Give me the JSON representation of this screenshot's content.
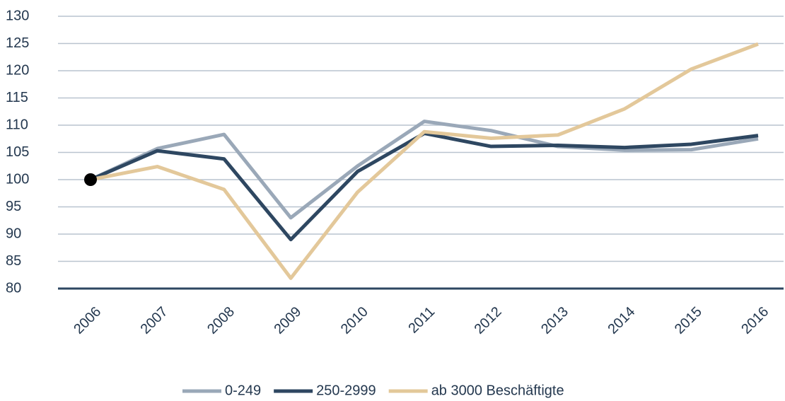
{
  "chart_data": {
    "type": "line",
    "categories": [
      "2006",
      "2007",
      "2008",
      "2009",
      "2010",
      "2011",
      "2012",
      "2013",
      "2014",
      "2015",
      "2016"
    ],
    "series": [
      {
        "name": "0-249",
        "color": "#9aa8b8",
        "values": [
          100,
          105.7,
          108.3,
          93,
          102.5,
          110.7,
          109,
          106.1,
          105.4,
          105.5,
          107.5
        ]
      },
      {
        "name": "250-2999",
        "color": "#2e4761",
        "values": [
          100,
          105.3,
          103.8,
          89,
          101.5,
          108.5,
          106.1,
          106.3,
          105.9,
          106.5,
          108.1
        ]
      },
      {
        "name": "ab 3000 Beschäftigte",
        "color": "#e3c89a",
        "values": [
          100,
          102.4,
          98.2,
          81.9,
          97.7,
          108.8,
          107.6,
          108.2,
          113,
          120.3,
          124.9
        ]
      }
    ],
    "ylim": [
      80,
      130
    ],
    "yticks": [
      80,
      85,
      90,
      95,
      100,
      105,
      110,
      115,
      120,
      125,
      130
    ],
    "grid": true,
    "legend": "bottom"
  }
}
